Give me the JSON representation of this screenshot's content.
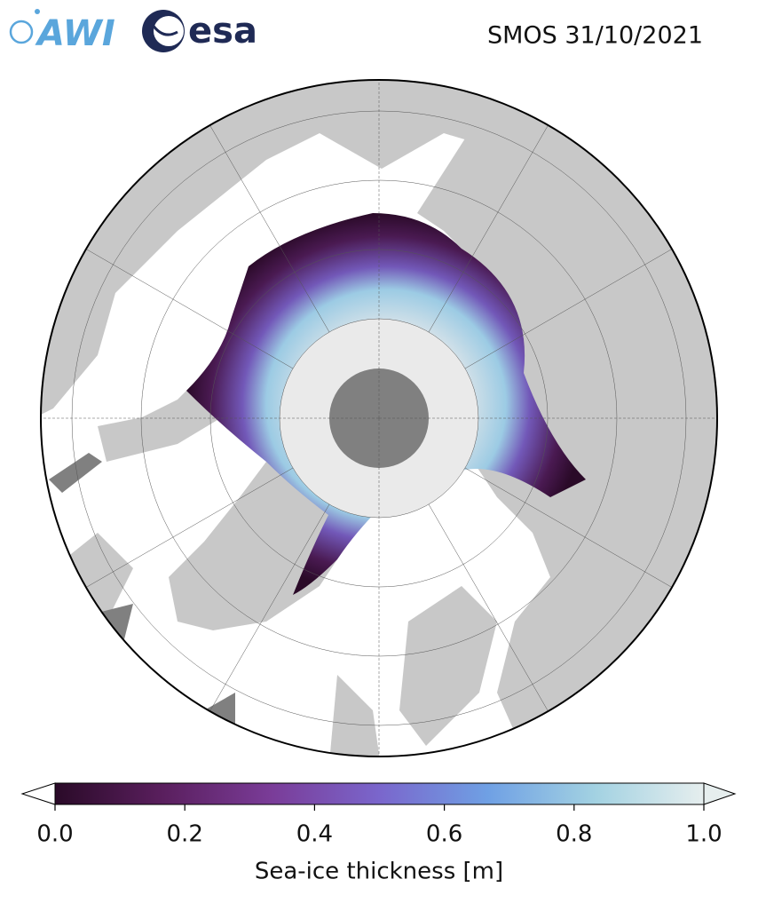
{
  "header": {
    "logos": [
      "AWI",
      "esa"
    ],
    "title": "SMOS 31/10/2021"
  },
  "colorbar": {
    "label": "Sea-ice thickness [m]",
    "lim": [
      0,
      1
    ],
    "ticks": [
      {
        "value": 0,
        "label": "0.0"
      },
      0.2,
      0.4,
      0.6,
      {
        "value": 0.8,
        "label": "0.8"
      },
      {
        "value": 1,
        "label": "1.0"
      }
    ],
    "colors": [
      "#2a0a28",
      "#5a1f5e",
      "#7a3c98",
      "#7a66cc",
      "#6fa0e4",
      "#a3d2e2",
      "#e6eeee"
    ]
  }
}
